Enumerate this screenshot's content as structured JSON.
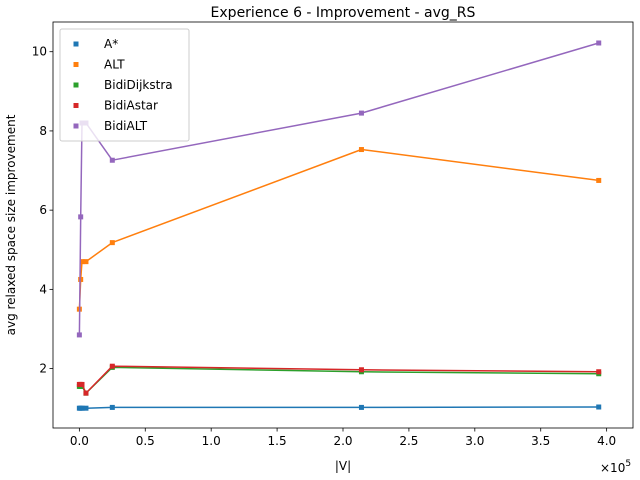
{
  "chart_data": {
    "type": "line",
    "title": "Experience 6 - Improvement - avg_RS",
    "xlabel": "|V|",
    "ylabel": "avg relaxed space size improvement",
    "x_multiplier": "×10",
    "x_multiplier_exp": "5",
    "xlim": [
      -0.2,
      4.2
    ],
    "ylim": [
      0.5,
      10.75
    ],
    "x_ticks": [
      0.0,
      0.5,
      1.0,
      1.5,
      2.0,
      2.5,
      3.0,
      3.5,
      4.0
    ],
    "x_tick_labels": [
      "0.0",
      "0.5",
      "1.0",
      "1.5",
      "2.0",
      "2.5",
      "3.0",
      "3.5",
      "4.0"
    ],
    "y_ticks": [
      2,
      4,
      6,
      8,
      10
    ],
    "y_tick_labels": [
      "2",
      "4",
      "6",
      "8",
      "10"
    ],
    "grid": false,
    "legend_position": "top-left",
    "series": [
      {
        "name": "A*",
        "color": "#1f77b4",
        "x": [
          0.0,
          0.01,
          0.02,
          0.05,
          0.25,
          2.14,
          3.94
        ],
        "y": [
          1.0,
          1.0,
          1.0,
          1.0,
          1.02,
          1.02,
          1.03
        ]
      },
      {
        "name": "ALT",
        "color": "#ff7f0e",
        "x": [
          0.0,
          0.01,
          0.02,
          0.05,
          0.25,
          2.14,
          3.94
        ],
        "y": [
          3.5,
          4.25,
          4.7,
          4.7,
          5.18,
          7.53,
          6.75
        ]
      },
      {
        "name": "BidiDijkstra",
        "color": "#2ca02c",
        "x": [
          0.0,
          0.01,
          0.02,
          0.05,
          0.25,
          2.14,
          3.94
        ],
        "y": [
          1.55,
          1.55,
          1.55,
          1.38,
          2.03,
          1.92,
          1.87
        ]
      },
      {
        "name": "BidiAstar",
        "color": "#d62728",
        "x": [
          0.0,
          0.01,
          0.02,
          0.05,
          0.25,
          2.14,
          3.94
        ],
        "y": [
          1.6,
          1.6,
          1.6,
          1.38,
          2.06,
          1.97,
          1.92
        ]
      },
      {
        "name": "BidiALT",
        "color": "#9467bd",
        "x": [
          0.0,
          0.01,
          0.02,
          0.05,
          0.25,
          2.14,
          3.94
        ],
        "y": [
          2.85,
          5.83,
          8.2,
          8.2,
          7.26,
          8.45,
          10.22
        ]
      }
    ]
  }
}
